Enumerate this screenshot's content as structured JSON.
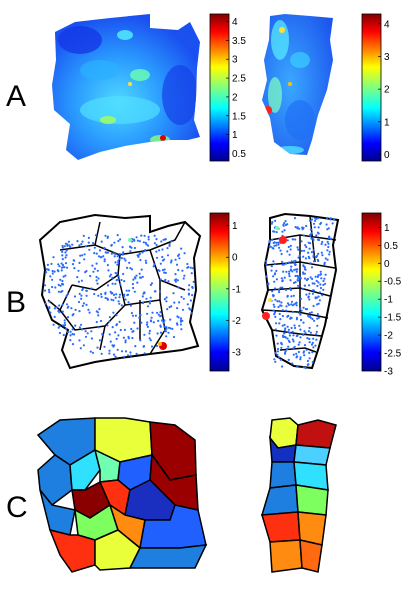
{
  "rows": [
    {
      "label": "A",
      "colorbars": [
        {
          "ticks": [
            "4",
            "3.5",
            "3",
            "2.5",
            "2",
            "1.5",
            "1",
            "0.5"
          ],
          "vmin": 0.3,
          "vmax": 4.2
        },
        {
          "ticks": [
            "4",
            "3",
            "2",
            "1",
            "0"
          ],
          "vmin": -0.2,
          "vmax": 4.3
        }
      ]
    },
    {
      "label": "B",
      "colorbars": [
        {
          "ticks": [
            "1",
            "0",
            "-1",
            "-2",
            "-3"
          ],
          "vmin": -3.6,
          "vmax": 1.4
        },
        {
          "ticks": [
            "1",
            "0.5",
            "0",
            "-0.5",
            "-1",
            "-1.5",
            "-2",
            "-2.5",
            "-3"
          ],
          "vmin": -3.0,
          "vmax": 1.4
        }
      ]
    },
    {
      "label": "C",
      "colorbars": []
    }
  ],
  "colormap": "jet"
}
